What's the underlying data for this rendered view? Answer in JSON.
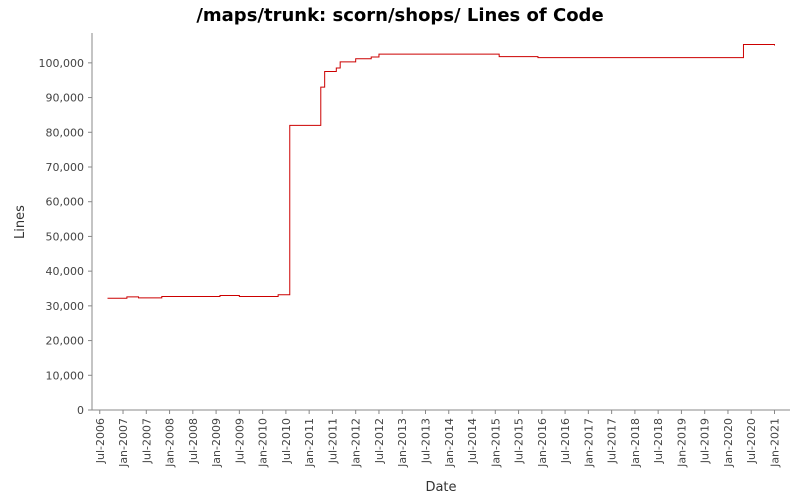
{
  "chart_data": {
    "type": "line",
    "step": "post",
    "title": "/maps/trunk: scorn/shops/ Lines of Code",
    "xlabel": "Date",
    "ylabel": "Lines",
    "x": [
      "2006-09",
      "2007-02",
      "2007-05",
      "2007-11",
      "2009-02",
      "2009-07",
      "2010-05",
      "2010-08",
      "2011-04",
      "2011-05",
      "2011-08",
      "2011-09",
      "2012-01",
      "2012-05",
      "2012-07",
      "2015-02",
      "2015-12",
      "2020-05",
      "2021-01"
    ],
    "series": [
      {
        "name": "Lines",
        "color": "#cc0000",
        "values": [
          32200,
          32600,
          32300,
          32700,
          33000,
          32700,
          33200,
          82000,
          93000,
          97500,
          98500,
          100300,
          101200,
          101700,
          102500,
          101800,
          101500,
          105300,
          105000
        ]
      }
    ],
    "xlim": [
      "2006-05",
      "2021-05"
    ],
    "xticks": [
      {
        "value": "2006-07",
        "label": "Jul-2006"
      },
      {
        "value": "2007-01",
        "label": "Jan-2007"
      },
      {
        "value": "2007-07",
        "label": "Jul-2007"
      },
      {
        "value": "2008-01",
        "label": "Jan-2008"
      },
      {
        "value": "2008-07",
        "label": "Jul-2008"
      },
      {
        "value": "2009-01",
        "label": "Jan-2009"
      },
      {
        "value": "2009-07",
        "label": "Jul-2009"
      },
      {
        "value": "2010-01",
        "label": "Jan-2010"
      },
      {
        "value": "2010-07",
        "label": "Jul-2010"
      },
      {
        "value": "2011-01",
        "label": "Jan-2011"
      },
      {
        "value": "2011-07",
        "label": "Jul-2011"
      },
      {
        "value": "2012-01",
        "label": "Jan-2012"
      },
      {
        "value": "2012-07",
        "label": "Jul-2012"
      },
      {
        "value": "2013-01",
        "label": "Jan-2013"
      },
      {
        "value": "2013-07",
        "label": "Jul-2013"
      },
      {
        "value": "2014-01",
        "label": "Jan-2014"
      },
      {
        "value": "2014-07",
        "label": "Jul-2014"
      },
      {
        "value": "2015-01",
        "label": "Jan-2015"
      },
      {
        "value": "2015-07",
        "label": "Jul-2015"
      },
      {
        "value": "2016-01",
        "label": "Jan-2016"
      },
      {
        "value": "2016-07",
        "label": "Jul-2016"
      },
      {
        "value": "2017-01",
        "label": "Jan-2017"
      },
      {
        "value": "2017-07",
        "label": "Jul-2017"
      },
      {
        "value": "2018-01",
        "label": "Jan-2018"
      },
      {
        "value": "2018-07",
        "label": "Jul-2018"
      },
      {
        "value": "2019-01",
        "label": "Jan-2019"
      },
      {
        "value": "2019-07",
        "label": "Jul-2019"
      },
      {
        "value": "2020-01",
        "label": "Jan-2020"
      },
      {
        "value": "2020-07",
        "label": "Jul-2020"
      },
      {
        "value": "2021-01",
        "label": "Jan-2021"
      }
    ],
    "ylim": [
      0,
      108600
    ],
    "yticks": [
      0,
      {
        "value": 10000,
        "label": "10,000"
      },
      {
        "value": 20000,
        "label": "20,000"
      },
      {
        "value": 30000,
        "label": "30,000"
      },
      {
        "value": 40000,
        "label": "40,000"
      },
      {
        "value": 50000,
        "label": "50,000"
      },
      {
        "value": 60000,
        "label": "60,000"
      },
      {
        "value": 70000,
        "label": "70,000"
      },
      {
        "value": 80000,
        "label": "80,000"
      },
      {
        "value": 90000,
        "label": "90,000"
      },
      {
        "value": 100000,
        "label": "100,000"
      }
    ],
    "grid": false
  }
}
